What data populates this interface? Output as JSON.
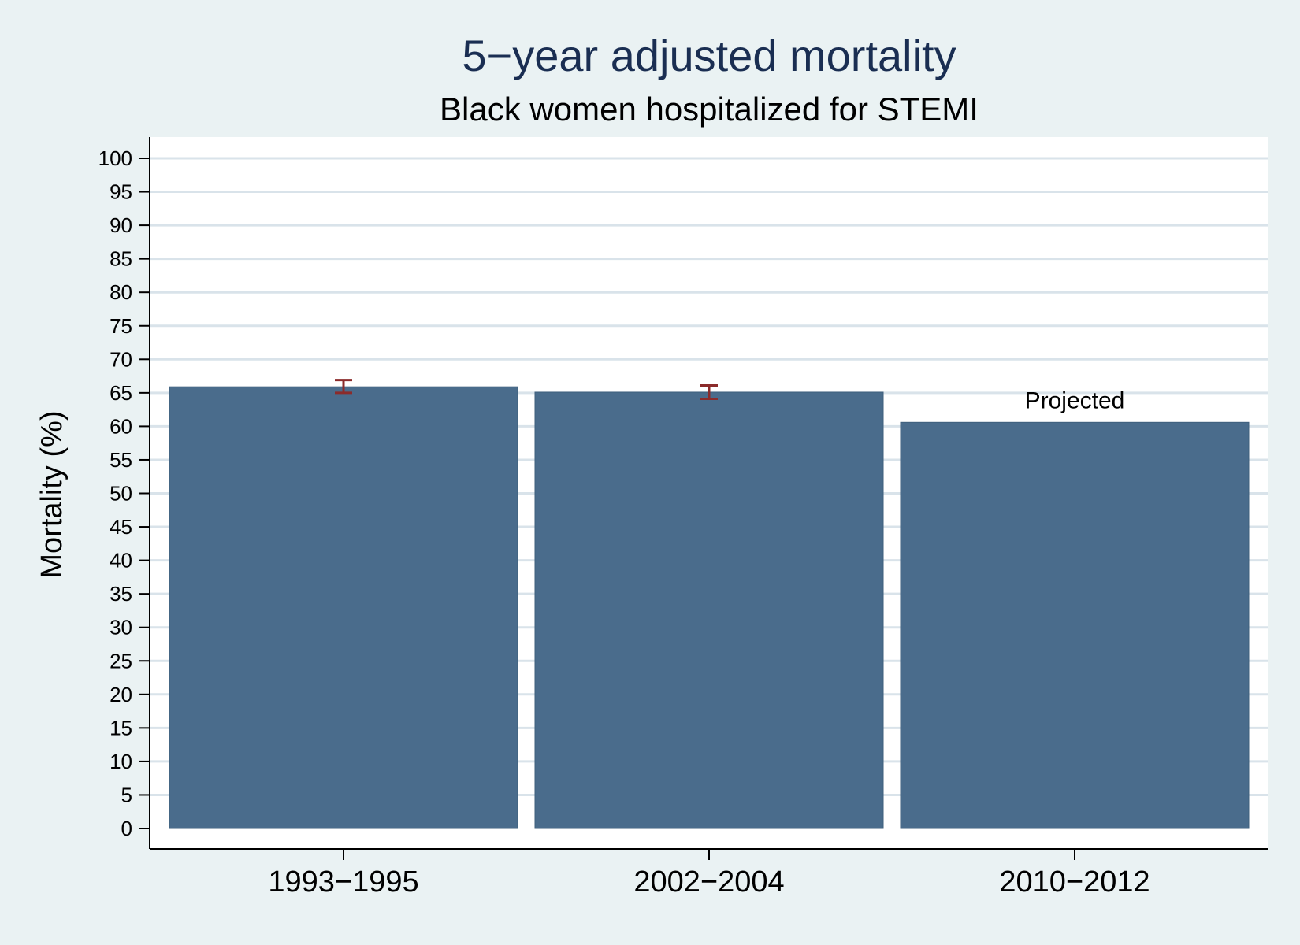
{
  "chart_data": {
    "type": "bar",
    "title": "5−year adjusted mortality",
    "subtitle": "Black women hospitalized for STEMI",
    "xlabel": "",
    "ylabel": "Mortality (%)",
    "ylim": [
      0,
      100
    ],
    "yticks": [
      "0",
      "5",
      "10",
      "15",
      "20",
      "25",
      "30",
      "35",
      "40",
      "45",
      "50",
      "55",
      "60",
      "65",
      "70",
      "75",
      "80",
      "85",
      "90",
      "95",
      "100"
    ],
    "grid": true,
    "categories": [
      "1993−1995",
      "2002−2004",
      "2010−2012"
    ],
    "values": [
      65.9,
      65.1,
      60.6
    ],
    "error_bars": [
      {
        "low": 65.0,
        "high": 66.9
      },
      {
        "low": 64.1,
        "high": 66.1
      },
      null
    ],
    "annotations": [
      {
        "category_index": 2,
        "text": "Projected"
      }
    ],
    "colors": {
      "background": "#eaf2f3",
      "plot_background": "#ffffff",
      "bar": "#4a6c8c",
      "error_bar": "#8b2b2b",
      "grid": "#d9e3ea",
      "title": "#1a2e52"
    }
  }
}
